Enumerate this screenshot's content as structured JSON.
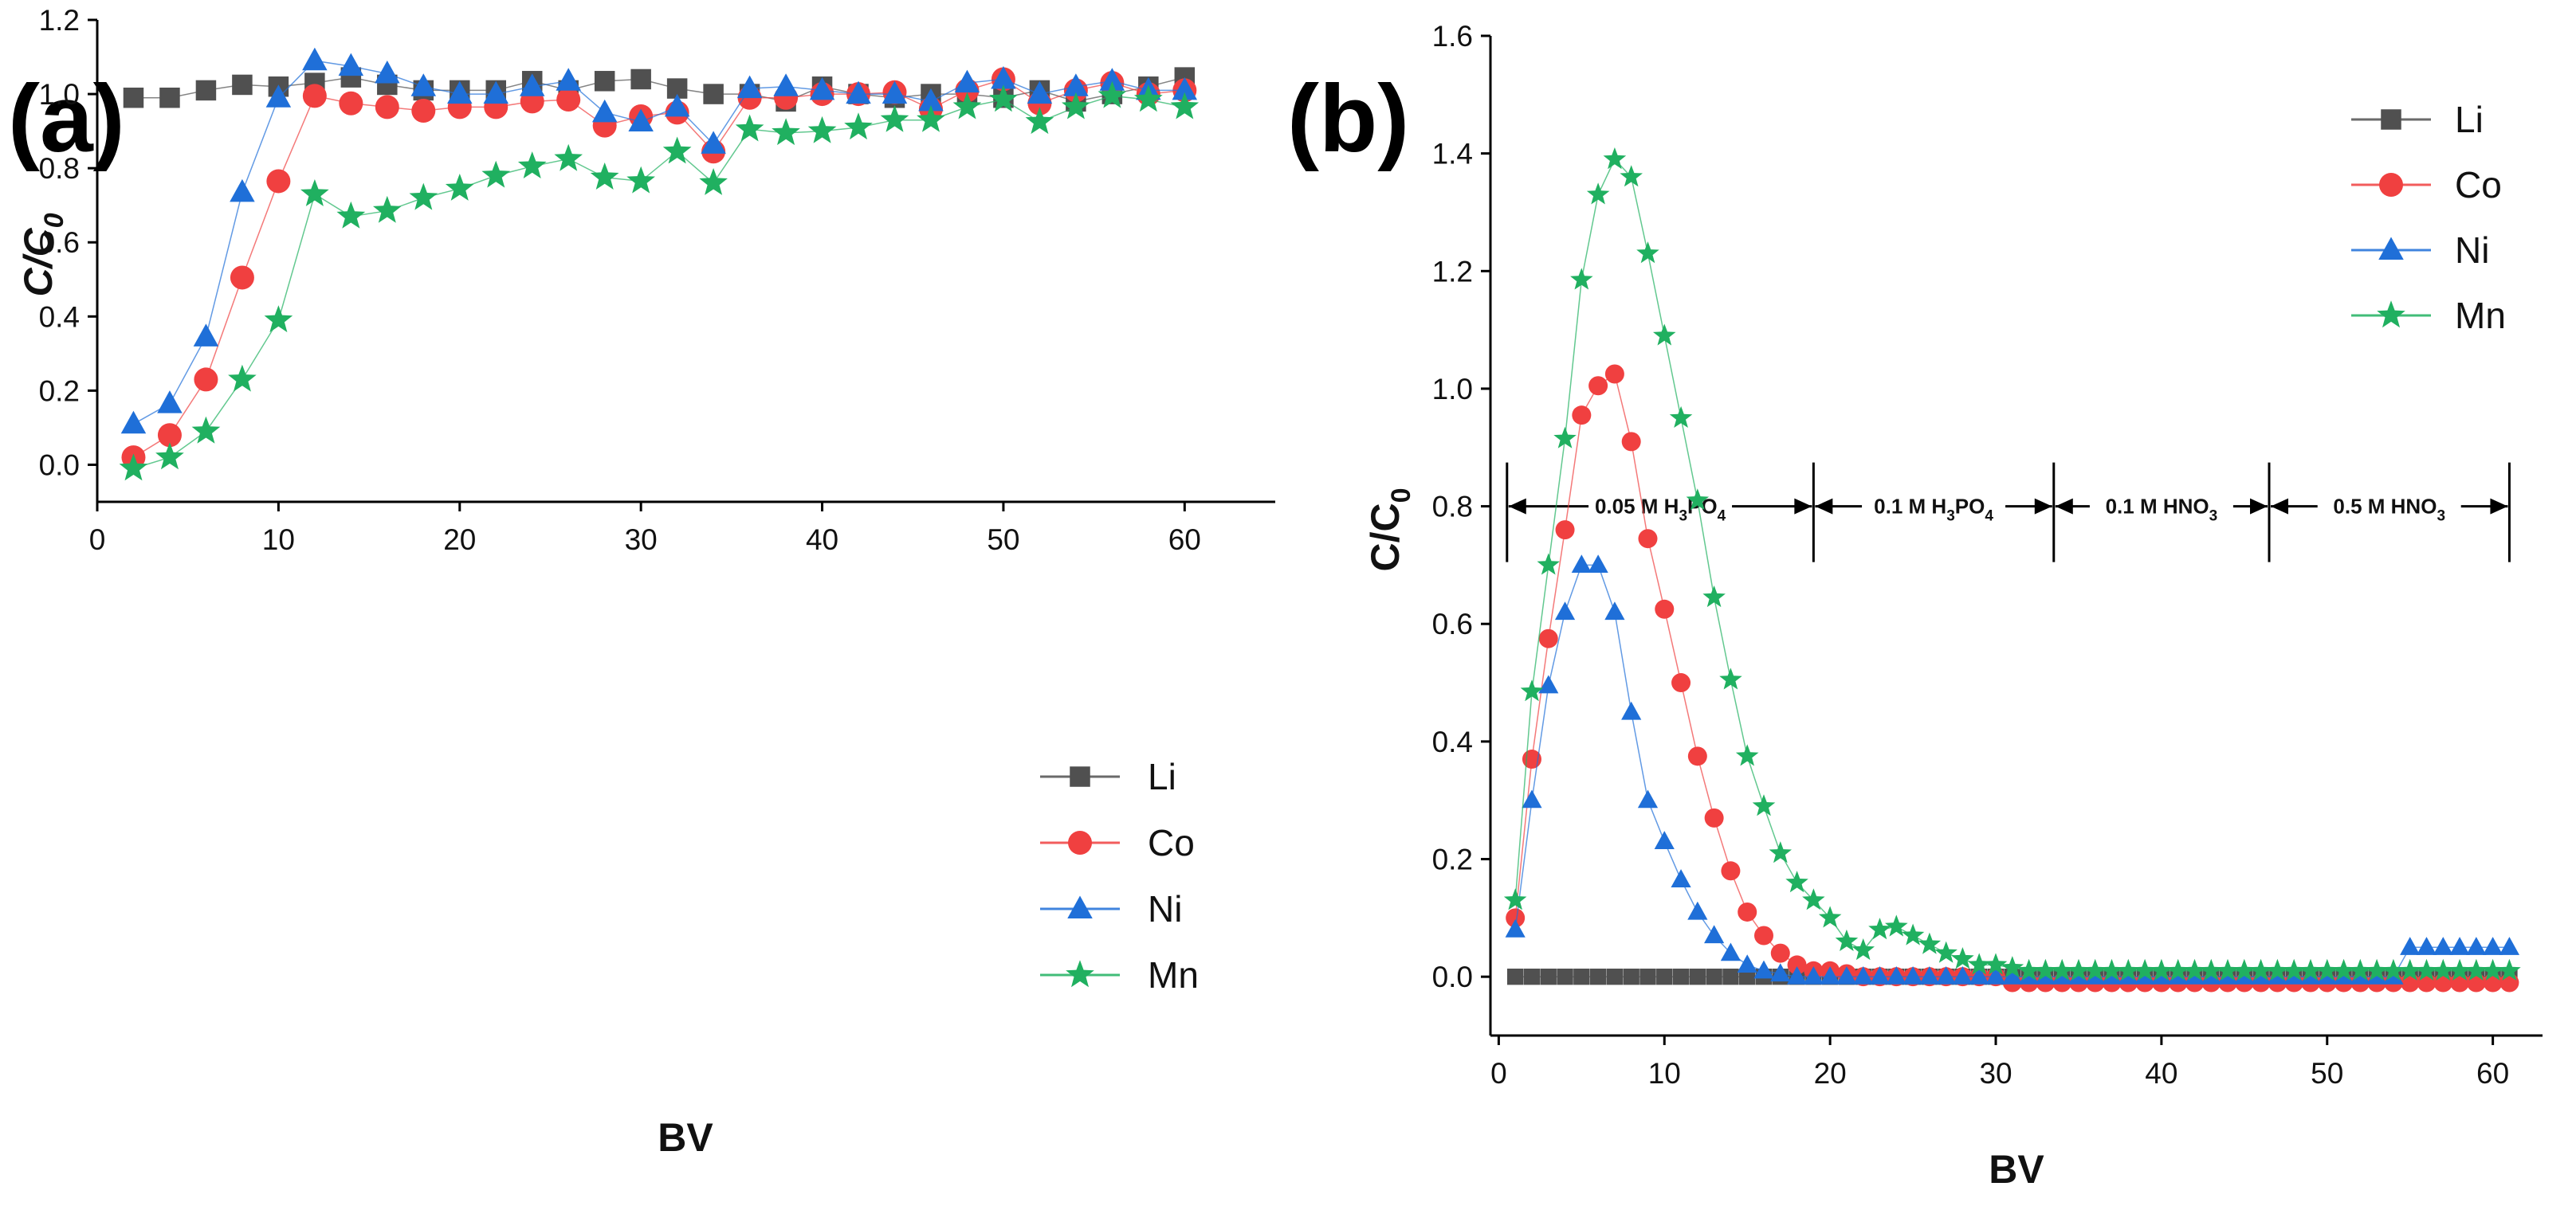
{
  "chart_data": [
    {
      "panel_label": "(a)",
      "type": "line",
      "xlabel": "BV",
      "ylabel": "C/C0",
      "ylabel_main": "C/C",
      "ylabel_sub": "0",
      "xlim": [
        0,
        65
      ],
      "ylim": [
        -0.1,
        1.2
      ],
      "xticks": [
        "0",
        "10",
        "20",
        "30",
        "40",
        "50",
        "60"
      ],
      "yticks": [
        "0.0",
        "0.2",
        "0.4",
        "0.6",
        "0.8",
        "1.0",
        "1.2"
      ],
      "legend_position": "bottom-right",
      "x": [
        2,
        4,
        6,
        8,
        10,
        12,
        14,
        16,
        18,
        20,
        22,
        24,
        26,
        28,
        30,
        32,
        34,
        36,
        38,
        40,
        42,
        44,
        46,
        48,
        50,
        52,
        54,
        56,
        58,
        60
      ],
      "series": [
        {
          "name": "Li",
          "color": "#505050",
          "marker": "square",
          "values": [
            0.99,
            0.99,
            1.01,
            1.025,
            1.02,
            1.03,
            1.045,
            1.025,
            1.01,
            1.01,
            1.01,
            1.035,
            1.01,
            1.035,
            1.04,
            1.015,
            1.0,
            1.0,
            0.98,
            1.02,
            1.0,
            0.99,
            1.0,
            1.0,
            0.99,
            1.01,
            0.98,
            1.0,
            1.02,
            1.045
          ]
        },
        {
          "name": "Co",
          "color": "#f04040",
          "marker": "circle",
          "values": [
            0.02,
            0.08,
            0.23,
            0.505,
            0.765,
            0.995,
            0.975,
            0.965,
            0.955,
            0.965,
            0.965,
            0.98,
            0.985,
            0.915,
            0.94,
            0.95,
            0.845,
            0.99,
            0.99,
            1.0,
            1.0,
            1.005,
            0.96,
            1.01,
            1.04,
            0.975,
            1.01,
            1.03,
            1.0,
            1.01
          ]
        },
        {
          "name": "Ni",
          "color": "#1f6fd8",
          "marker": "triangle",
          "values": [
            0.11,
            0.165,
            0.345,
            0.735,
            0.99,
            1.09,
            1.075,
            1.055,
            1.02,
            1.0,
            1.0,
            1.02,
            1.035,
            0.95,
            0.925,
            0.965,
            0.865,
            1.015,
            1.02,
            1.01,
            1.0,
            1.0,
            0.98,
            1.03,
            1.04,
            1.0,
            1.02,
            1.035,
            1.01,
            1.01
          ]
        },
        {
          "name": "Mn",
          "color": "#20b060",
          "marker": "star",
          "values": [
            -0.01,
            0.02,
            0.09,
            0.23,
            0.39,
            0.73,
            0.67,
            0.685,
            0.72,
            0.745,
            0.78,
            0.805,
            0.825,
            0.775,
            0.765,
            0.845,
            0.76,
            0.905,
            0.895,
            0.9,
            0.91,
            0.93,
            0.93,
            0.965,
            0.985,
            0.925,
            0.965,
            0.995,
            0.985,
            0.965
          ]
        }
      ]
    },
    {
      "panel_label": "(b)",
      "type": "line",
      "xlabel": "BV",
      "ylabel": "C/C0",
      "ylabel_main": "C/C",
      "ylabel_sub": "0",
      "xlim": [
        -0.5,
        63
      ],
      "ylim": [
        -0.1,
        1.6
      ],
      "xticks": [
        "0",
        "10",
        "20",
        "30",
        "40",
        "50",
        "60"
      ],
      "yticks": [
        "0.0",
        "0.2",
        "0.4",
        "0.6",
        "0.8",
        "1.0",
        "1.2",
        "1.4",
        "1.6"
      ],
      "legend_position": "top-right",
      "x": [
        1,
        2,
        3,
        4,
        5,
        6,
        7,
        8,
        9,
        10,
        11,
        12,
        13,
        14,
        15,
        16,
        17,
        18,
        19,
        20,
        21,
        22,
        23,
        24,
        25,
        26,
        27,
        28,
        29,
        30,
        31,
        32,
        33,
        34,
        35,
        36,
        37,
        38,
        39,
        40,
        41,
        42,
        43,
        44,
        45,
        46,
        47,
        48,
        49,
        50,
        51,
        52,
        53,
        54,
        55,
        56,
        57,
        58,
        59,
        60,
        61
      ],
      "series": [
        {
          "name": "Li",
          "color": "#505050",
          "marker": "square",
          "values": [
            0,
            0,
            0,
            0,
            0,
            0,
            0,
            0,
            0,
            0,
            0,
            0,
            0,
            0,
            0,
            0,
            0,
            0,
            0,
            0,
            0,
            0,
            0,
            0,
            0,
            0,
            0,
            0,
            0,
            0,
            0,
            0,
            0,
            0,
            0,
            0,
            0,
            0,
            0,
            0,
            0,
            0,
            0,
            0,
            0,
            0,
            0,
            0,
            0,
            0,
            0,
            0,
            0,
            0,
            0,
            0,
            0,
            0,
            0,
            0,
            0
          ]
        },
        {
          "name": "Co",
          "color": "#f04040",
          "marker": "circle",
          "values": [
            0.1,
            0.37,
            0.575,
            0.76,
            0.955,
            1.005,
            1.025,
            0.91,
            0.745,
            0.625,
            0.5,
            0.375,
            0.27,
            0.18,
            0.11,
            0.07,
            0.04,
            0.02,
            0.01,
            0.01,
            0.005,
            0,
            0,
            0,
            0,
            0,
            0,
            0,
            0,
            0,
            -0.01,
            -0.01,
            -0.01,
            -0.01,
            -0.01,
            -0.01,
            -0.01,
            -0.01,
            -0.01,
            -0.01,
            -0.01,
            -0.01,
            -0.01,
            -0.01,
            -0.01,
            -0.01,
            -0.01,
            -0.01,
            -0.01,
            -0.01,
            -0.01,
            -0.01,
            -0.01,
            -0.01,
            -0.01,
            -0.01,
            -0.01,
            -0.01,
            -0.01,
            -0.01,
            -0.01
          ]
        },
        {
          "name": "Ni",
          "color": "#1f6fd8",
          "marker": "triangle",
          "values": [
            0.08,
            0.3,
            0.495,
            0.62,
            0.7,
            0.7,
            0.62,
            0.45,
            0.3,
            0.23,
            0.165,
            0.11,
            0.07,
            0.04,
            0.02,
            0.01,
            0.005,
            0,
            0,
            0,
            0,
            0,
            0,
            0,
            0,
            0,
            0,
            0,
            0,
            0,
            0,
            0,
            0,
            0,
            0,
            0,
            0,
            0,
            0,
            0,
            0,
            0,
            0,
            0,
            0,
            0,
            0,
            0,
            0,
            0,
            0,
            0,
            0,
            0,
            0.05,
            0.05,
            0.05,
            0.05,
            0.05,
            0.05,
            0.05
          ]
        },
        {
          "name": "Mn",
          "color": "#20b060",
          "marker": "star",
          "values": [
            0.13,
            0.485,
            0.7,
            0.915,
            1.185,
            1.33,
            1.39,
            1.36,
            1.23,
            1.09,
            0.95,
            0.81,
            0.645,
            0.505,
            0.375,
            0.29,
            0.21,
            0.16,
            0.13,
            0.1,
            0.06,
            0.045,
            0.08,
            0.085,
            0.07,
            0.055,
            0.04,
            0.03,
            0.02,
            0.02,
            0.015,
            0.01,
            0.01,
            0.01,
            0.01,
            0.01,
            0.01,
            0.01,
            0.01,
            0.01,
            0.01,
            0.01,
            0.01,
            0.01,
            0.01,
            0.01,
            0.01,
            0.01,
            0.01,
            0.01,
            0.01,
            0.01,
            0.01,
            0.01,
            0.01,
            0.01,
            0.01,
            0.01,
            0.01,
            0.01,
            0.01
          ]
        }
      ],
      "annotations": {
        "y_level": 0.8,
        "boundaries_x": [
          0.5,
          19,
          33.5,
          46.5,
          61
        ],
        "regions": [
          {
            "label": "0.05 M H3PO4",
            "main": "0.05 M H",
            "sub1": "3",
            "mid": "PO",
            "sub2": "4"
          },
          {
            "label": "0.1 M H3PO4",
            "main": "0.1 M H",
            "sub1": "3",
            "mid": "PO",
            "sub2": "4"
          },
          {
            "label": "0.1 M HNO3",
            "main": "0.1 M HNO",
            "sub1": "3",
            "mid": "",
            "sub2": ""
          },
          {
            "label": "0.5 M HNO3",
            "main": "0.5 M HNO",
            "sub1": "3",
            "mid": "",
            "sub2": ""
          }
        ]
      }
    }
  ]
}
